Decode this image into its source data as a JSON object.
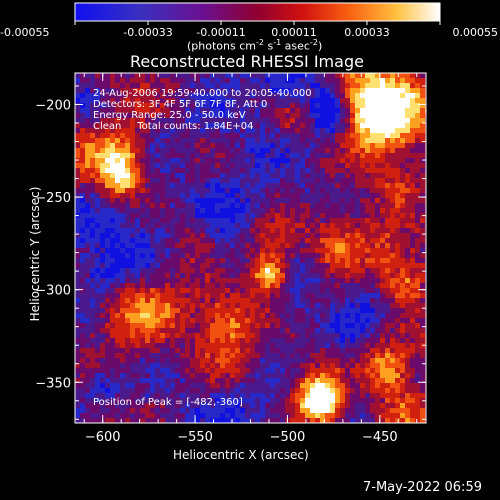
{
  "colorbar": {
    "ticks": [
      "-0.00055",
      "-0.00033",
      "-0.00011",
      "0.00011",
      "0.00033",
      "0.00055"
    ],
    "tick_values": [
      -0.00055,
      -0.00033,
      -0.00011,
      0.00011,
      0.00033,
      0.00055
    ],
    "units_prefix": "(photons cm",
    "units_exp1": "-2",
    "units_mid": " s",
    "units_exp2": "-1",
    "units_mid2": " asec",
    "units_exp3": "-2",
    "units_suffix": ")"
  },
  "chart_data": {
    "type": "heatmap",
    "title": "Reconstructed RHESSI Image",
    "xlabel": "Heliocentric X (arcsec)",
    "ylabel": "Heliocentric Y (arcsec)",
    "xlim": [
      -615,
      -425
    ],
    "ylim": [
      -372,
      -183
    ],
    "x_ticks": [
      -600,
      -550,
      -500,
      -450
    ],
    "x_tick_labels": [
      "−600",
      "−550",
      "−500",
      "−450"
    ],
    "y_ticks": [
      -200,
      -250,
      -300,
      -350
    ],
    "y_tick_labels": [
      "−200",
      "−250",
      "−300",
      "−350"
    ],
    "colorbar_range": [
      -0.00055,
      0.00055
    ],
    "colormap": [
      "#1010e0",
      "#2828c8",
      "#4a1a8c",
      "#6a0a6a",
      "#a01030",
      "#d02010",
      "#f05010",
      "#ffa020",
      "#ffe070",
      "#ffffff"
    ],
    "annotations": [
      "24-Aug-2006 19:59:40.000 to 20:05:40.000",
      "Detectors: 3F 4F 5F 6F 7F 8F, Att 0",
      "Energy Range: 25.0 - 50.0 keV",
      "Clean     Total counts: 1.84E+04"
    ],
    "peak_label": "Position of Peak = [-482,-360]",
    "peak": [
      -482,
      -360
    ]
  },
  "footer_timestamp": "7-May-2022 06:59"
}
